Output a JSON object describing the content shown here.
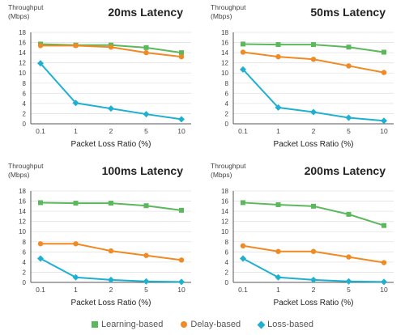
{
  "colors": {
    "learning": "#5cb85c",
    "delay": "#f08a24",
    "loss": "#1fb0d1",
    "grid": "#e3e3e3",
    "axis": "#555555"
  },
  "legend": {
    "learning": "Learning-based",
    "delay": "Delay-based",
    "loss": "Loss-based"
  },
  "chart_data": [
    {
      "type": "line",
      "title": "20ms Latency",
      "ylabel_line1": "Throughput",
      "ylabel_line2": "(Mbps)",
      "xlabel": "Packet Loss Ratio (%)",
      "categories": [
        "0.1",
        "1",
        "2",
        "5",
        "10"
      ],
      "ylim": [
        0,
        18
      ],
      "yticks": [
        0,
        2,
        4,
        6,
        8,
        10,
        12,
        14,
        16,
        18
      ],
      "grid": true,
      "series": [
        {
          "name": "Learning-based",
          "key": "learning",
          "marker": "square",
          "values": [
            15.7,
            15.5,
            15.5,
            15.0,
            14.0
          ]
        },
        {
          "name": "Delay-based",
          "key": "delay",
          "marker": "circle",
          "values": [
            15.4,
            15.4,
            15.1,
            14.0,
            13.2
          ]
        },
        {
          "name": "Loss-based",
          "key": "loss",
          "marker": "diamond",
          "values": [
            11.9,
            4.1,
            3.0,
            1.9,
            0.9
          ]
        }
      ]
    },
    {
      "type": "line",
      "title": "50ms Latency",
      "ylabel_line1": "Throughput",
      "ylabel_line2": "(Mbps)",
      "xlabel": "Packet Loss Ratio (%)",
      "categories": [
        "0.1",
        "1",
        "2",
        "5",
        "10"
      ],
      "ylim": [
        0,
        18
      ],
      "yticks": [
        0,
        2,
        4,
        6,
        8,
        10,
        12,
        14,
        16,
        18
      ],
      "grid": true,
      "series": [
        {
          "name": "Learning-based",
          "key": "learning",
          "marker": "square",
          "values": [
            15.7,
            15.6,
            15.6,
            15.1,
            14.1
          ]
        },
        {
          "name": "Delay-based",
          "key": "delay",
          "marker": "circle",
          "values": [
            14.1,
            13.2,
            12.7,
            11.4,
            10.1
          ]
        },
        {
          "name": "Loss-based",
          "key": "loss",
          "marker": "diamond",
          "values": [
            10.7,
            3.2,
            2.3,
            1.2,
            0.6
          ]
        }
      ]
    },
    {
      "type": "line",
      "title": "100ms Latency",
      "ylabel_line1": "Throughput",
      "ylabel_line2": "(Mbps)",
      "xlabel": "Packet Loss Ratio (%)",
      "categories": [
        "0.1",
        "1",
        "2",
        "5",
        "10"
      ],
      "ylim": [
        0,
        18
      ],
      "yticks": [
        0,
        2,
        4,
        6,
        8,
        10,
        12,
        14,
        16,
        18
      ],
      "grid": true,
      "series": [
        {
          "name": "Learning-based",
          "key": "learning",
          "marker": "square",
          "values": [
            15.7,
            15.6,
            15.6,
            15.1,
            14.2
          ]
        },
        {
          "name": "Delay-based",
          "key": "delay",
          "marker": "circle",
          "values": [
            7.6,
            7.6,
            6.2,
            5.3,
            4.4
          ]
        },
        {
          "name": "Loss-based",
          "key": "loss",
          "marker": "diamond",
          "values": [
            4.7,
            1.0,
            0.5,
            0.2,
            0.1
          ]
        }
      ]
    },
    {
      "type": "line",
      "title": "200ms Latency",
      "ylabel_line1": "Throughput",
      "ylabel_line2": "(Mbps)",
      "xlabel": "Packet Loss Ratio (%)",
      "categories": [
        "0.1",
        "1",
        "2",
        "5",
        "10"
      ],
      "ylim": [
        0,
        18
      ],
      "yticks": [
        0,
        2,
        4,
        6,
        8,
        10,
        12,
        14,
        16,
        18
      ],
      "grid": true,
      "series": [
        {
          "name": "Learning-based",
          "key": "learning",
          "marker": "square",
          "values": [
            15.7,
            15.3,
            15.0,
            13.4,
            11.2
          ]
        },
        {
          "name": "Delay-based",
          "key": "delay",
          "marker": "circle",
          "values": [
            7.2,
            6.1,
            6.1,
            5.0,
            3.9
          ]
        },
        {
          "name": "Loss-based",
          "key": "loss",
          "marker": "diamond",
          "values": [
            4.7,
            1.0,
            0.5,
            0.2,
            0.1
          ]
        }
      ]
    }
  ]
}
